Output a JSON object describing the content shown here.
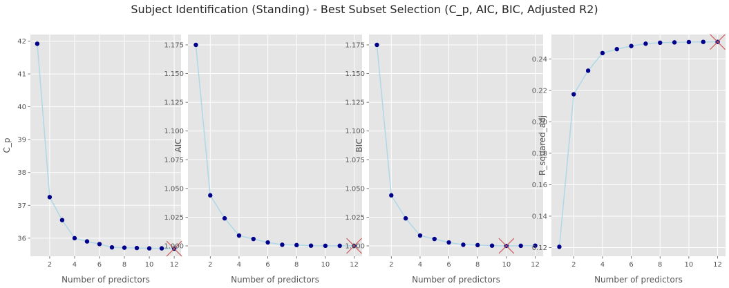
{
  "title": "Subject Identification (Standing) - Best Subset Selection (C_p, AIC, BIC, Adjusted R2)",
  "colors": {
    "panel_bg": "#e5e5e5",
    "grid": "#ffffff",
    "line": "#add8e6",
    "marker": "#00008b",
    "best_marker": "#cd5c5c"
  },
  "chart_data": [
    {
      "type": "line",
      "xlabel": "Number of predictors",
      "ylabel": "C_p",
      "x": [
        1,
        2,
        3,
        4,
        5,
        6,
        7,
        8,
        9,
        10,
        11,
        12
      ],
      "values": [
        41.92,
        37.25,
        36.55,
        36.0,
        35.9,
        35.82,
        35.72,
        35.71,
        35.7,
        35.69,
        35.69,
        35.68
      ],
      "best_x": 12,
      "xlim": [
        0.45,
        12.55
      ],
      "ylim": [
        35.45,
        42.2
      ],
      "xticks": [
        "2",
        "4",
        "6",
        "8",
        "10",
        "12"
      ],
      "yticks": [
        "36",
        "37",
        "38",
        "39",
        "40",
        "41",
        "42"
      ],
      "grid": true
    },
    {
      "type": "line",
      "xlabel": "Number of predictors",
      "ylabel": "AIC",
      "x": [
        1,
        2,
        3,
        4,
        5,
        6,
        7,
        8,
        9,
        10,
        11,
        12
      ],
      "values": [
        1.175,
        1.044,
        1.024,
        1.009,
        1.006,
        1.003,
        1.001,
        1.0007,
        1.0002,
        1.0001,
        1.0001,
        1.0
      ],
      "best_x": 12,
      "xlim": [
        0.45,
        12.55
      ],
      "ylim": [
        0.991,
        1.184
      ],
      "xticks": [
        "2",
        "4",
        "6",
        "8",
        "10",
        "12"
      ],
      "yticks": [
        "1.000",
        "1.025",
        "1.050",
        "1.075",
        "1.100",
        "1.125",
        "1.150",
        "1.175"
      ],
      "grid": true
    },
    {
      "type": "line",
      "xlabel": "Number of predictors",
      "ylabel": "BIC",
      "x": [
        1,
        2,
        3,
        4,
        5,
        6,
        7,
        8,
        9,
        10,
        11,
        12
      ],
      "values": [
        1.175,
        1.044,
        1.024,
        1.009,
        1.006,
        1.003,
        1.001,
        1.0007,
        1.0002,
        1.0,
        1.0001,
        1.0002
      ],
      "best_x": 10,
      "xlim": [
        0.45,
        12.55
      ],
      "ylim": [
        0.991,
        1.184
      ],
      "xticks": [
        "2",
        "4",
        "6",
        "8",
        "10",
        "12"
      ],
      "yticks": [
        "1.000",
        "1.025",
        "1.050",
        "1.075",
        "1.100",
        "1.125",
        "1.150",
        "1.175"
      ],
      "grid": true
    },
    {
      "type": "line",
      "xlabel": "Number of predictors",
      "ylabel": "R_squared_adj",
      "x": [
        1,
        2,
        3,
        4,
        5,
        6,
        7,
        8,
        9,
        10,
        11,
        12
      ],
      "values": [
        0.1205,
        0.2175,
        0.2325,
        0.2437,
        0.2462,
        0.2482,
        0.2497,
        0.2503,
        0.2505,
        0.2507,
        0.2508,
        0.2508
      ],
      "best_x": 12,
      "xlim": [
        0.45,
        12.55
      ],
      "ylim": [
        0.1145,
        0.2555
      ],
      "xticks": [
        "2",
        "4",
        "6",
        "8",
        "10",
        "12"
      ],
      "yticks": [
        "0.12",
        "0.14",
        "0.16",
        "0.18",
        "0.20",
        "0.22",
        "0.24"
      ],
      "grid": true
    }
  ]
}
